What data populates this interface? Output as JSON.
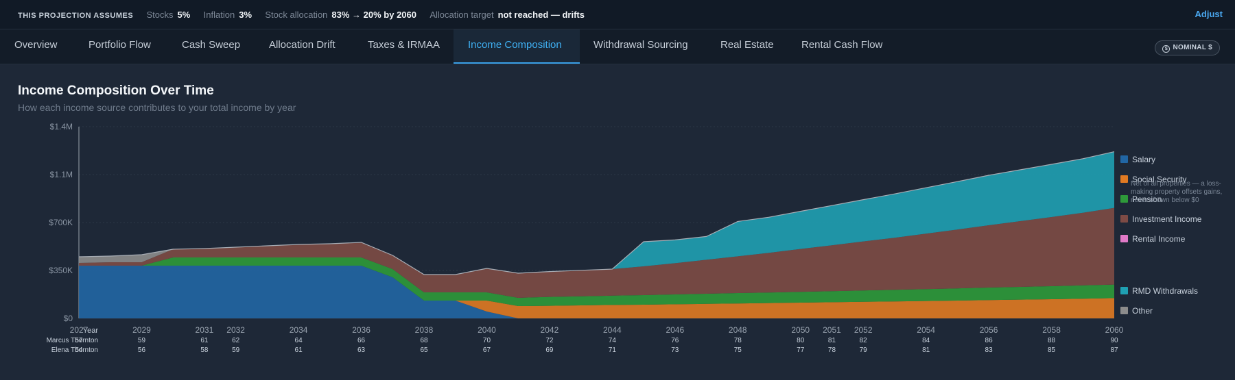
{
  "assumptions": {
    "lead": "THIS PROJECTION ASSUMES",
    "items": [
      {
        "label": "Stocks",
        "value": "5%"
      },
      {
        "label": "Inflation",
        "value": "3%"
      },
      {
        "label": "Stock allocation",
        "value": "83% → 20% by 2060"
      },
      {
        "label": "Allocation target",
        "value": "not reached — drifts"
      }
    ],
    "adjust_label": "Adjust"
  },
  "tabs": [
    {
      "label": "Overview"
    },
    {
      "label": "Portfolio Flow"
    },
    {
      "label": "Cash Sweep"
    },
    {
      "label": "Allocation Drift"
    },
    {
      "label": "Taxes & IRMAA"
    },
    {
      "label": "Income Composition",
      "active": true
    },
    {
      "label": "Withdrawal Sourcing"
    },
    {
      "label": "Real Estate"
    },
    {
      "label": "Rental Cash Flow"
    }
  ],
  "nominal_label": "NOMINAL $",
  "chart_data": {
    "type": "area",
    "title": "Income Composition Over Time",
    "subtitle": "How each income source contributes to your total income by year",
    "ylim": [
      0,
      1400000
    ],
    "y_ticks": [
      "$0",
      "$350K",
      "$700K",
      "$1.1M",
      "$1.4M"
    ],
    "x": [
      2027,
      2028,
      2029,
      2030,
      2031,
      2032,
      2033,
      2034,
      2035,
      2036,
      2037,
      2038,
      2039,
      2040,
      2041,
      2042,
      2043,
      2044,
      2045,
      2046,
      2047,
      2048,
      2049,
      2050,
      2051,
      2052,
      2053,
      2054,
      2055,
      2056,
      2057,
      2058,
      2059,
      2060
    ],
    "x_tick_labels": [
      "2027",
      "2029",
      "2031",
      "2032",
      "2034",
      "2036",
      "2038",
      "2040",
      "2042",
      "2044",
      "2046",
      "2048",
      "2050",
      "2051",
      "2052",
      "2054",
      "2056",
      "2058",
      "2060"
    ],
    "series": [
      {
        "name": "Salary",
        "color": "#2166a4",
        "values": [
          385000,
          385000,
          385000,
          385000,
          385000,
          385000,
          385000,
          385000,
          385000,
          385000,
          300000,
          130000,
          130000,
          50000,
          0,
          0,
          0,
          0,
          0,
          0,
          0,
          0,
          0,
          0,
          0,
          0,
          0,
          0,
          0,
          0,
          0,
          0,
          0,
          0
        ]
      },
      {
        "name": "Social Security",
        "color": "#e07a22",
        "values": [
          0,
          0,
          0,
          0,
          0,
          0,
          0,
          0,
          0,
          0,
          0,
          0,
          0,
          80000,
          90000,
          92000,
          95000,
          98000,
          100000,
          103000,
          106000,
          109000,
          112000,
          115000,
          118000,
          121000,
          124000,
          127000,
          130000,
          134000,
          137000,
          140000,
          144000,
          148000
        ]
      },
      {
        "name": "Pension",
        "color": "#2e9a3a",
        "values": [
          0,
          0,
          0,
          60000,
          60000,
          60000,
          60000,
          60000,
          60000,
          60000,
          60000,
          60000,
          60000,
          60000,
          60000,
          65000,
          66000,
          68000,
          70000,
          72000,
          74000,
          76000,
          77000,
          79000,
          81000,
          83000,
          85000,
          87000,
          89000,
          91000,
          93000,
          95000,
          97000,
          99000
        ]
      },
      {
        "name": "Investment Income",
        "color": "#7d4b45",
        "values": [
          20000,
          25000,
          25000,
          60000,
          65000,
          75000,
          85000,
          95000,
          100000,
          110000,
          100000,
          130000,
          130000,
          175000,
          180000,
          185000,
          190000,
          194000,
          210000,
          228000,
          248000,
          268000,
          290000,
          313000,
          335000,
          358000,
          380000,
          405000,
          430000,
          455000,
          480000,
          505000,
          530000,
          560000
        ]
      },
      {
        "name": "Rental Income",
        "note": "Net of all properties — a loss-making property offsets gains, never shown below $0",
        "color": "#e07ac8",
        "values": [
          0,
          0,
          0,
          0,
          0,
          0,
          0,
          0,
          0,
          0,
          0,
          0,
          0,
          0,
          0,
          0,
          0,
          0,
          0,
          0,
          0,
          0,
          0,
          0,
          0,
          0,
          0,
          0,
          0,
          0,
          0,
          0,
          0,
          0
        ]
      },
      {
        "name": "RMD Withdrawals",
        "color": "#1fa0b2",
        "values": [
          0,
          0,
          0,
          0,
          0,
          0,
          0,
          0,
          0,
          0,
          0,
          0,
          0,
          0,
          0,
          0,
          0,
          0,
          180000,
          170000,
          170000,
          255000,
          260000,
          275000,
          290000,
          305000,
          320000,
          335000,
          350000,
          365000,
          375000,
          385000,
          395000,
          410000
        ]
      },
      {
        "name": "Other",
        "color": "#8c8c8c",
        "values": [
          45000,
          45000,
          55000,
          0,
          0,
          0,
          0,
          0,
          0,
          0,
          0,
          0,
          0,
          0,
          0,
          0,
          0,
          0,
          0,
          0,
          0,
          0,
          0,
          0,
          0,
          0,
          0,
          0,
          0,
          0,
          0,
          0,
          0,
          0
        ]
      }
    ],
    "age_rows": [
      {
        "label": "Year",
        "values": []
      },
      {
        "label": "Marcus Thornton",
        "values": [
          "57",
          "59",
          "61",
          "62",
          "64",
          "66",
          "68",
          "70",
          "72",
          "74",
          "76",
          "78",
          "80",
          "81",
          "82",
          "84",
          "86",
          "88",
          "90"
        ]
      },
      {
        "label": "Elena Thornton",
        "values": [
          "54",
          "56",
          "58",
          "59",
          "61",
          "63",
          "65",
          "67",
          "69",
          "71",
          "73",
          "75",
          "77",
          "78",
          "79",
          "81",
          "83",
          "85",
          "87"
        ]
      }
    ],
    "legend_position": "right",
    "grid": true
  }
}
